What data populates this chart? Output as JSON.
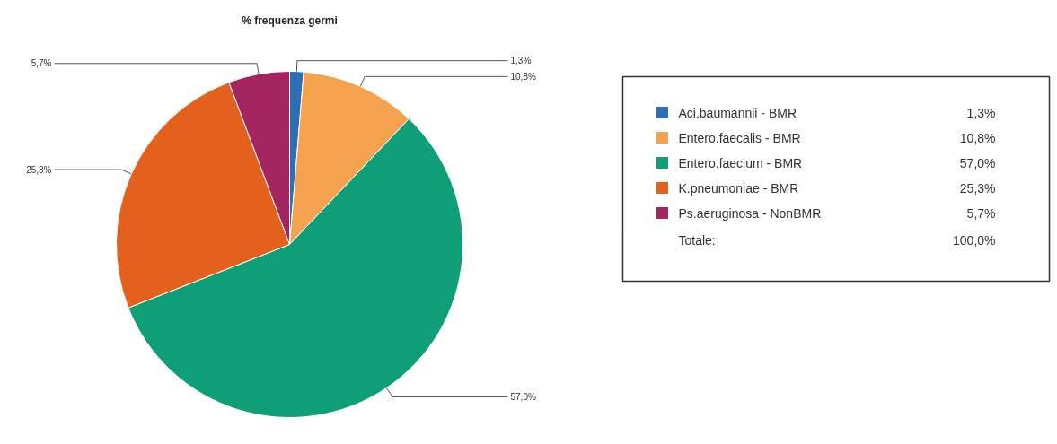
{
  "chart_data": {
    "type": "pie",
    "title": "% frequenza germi",
    "categories": [
      "Aci.baumannii - BMR",
      "Entero.faecalis - BMR",
      "Entero.faecium - BMR",
      "K.pneumoniae - BMR",
      "Ps.aeruginosa - NonBMR"
    ],
    "values": [
      1.3,
      10.8,
      57.0,
      25.3,
      5.7
    ],
    "colors": [
      "#2f6db5",
      "#f5a24e",
      "#0f9f78",
      "#e3601d",
      "#a32560"
    ],
    "value_labels": [
      "1,3%",
      "10,8%",
      "57,0%",
      "25,3%",
      "5,7%"
    ],
    "annotations": [
      "Totale:",
      "100,0%"
    ],
    "legend": "right"
  }
}
